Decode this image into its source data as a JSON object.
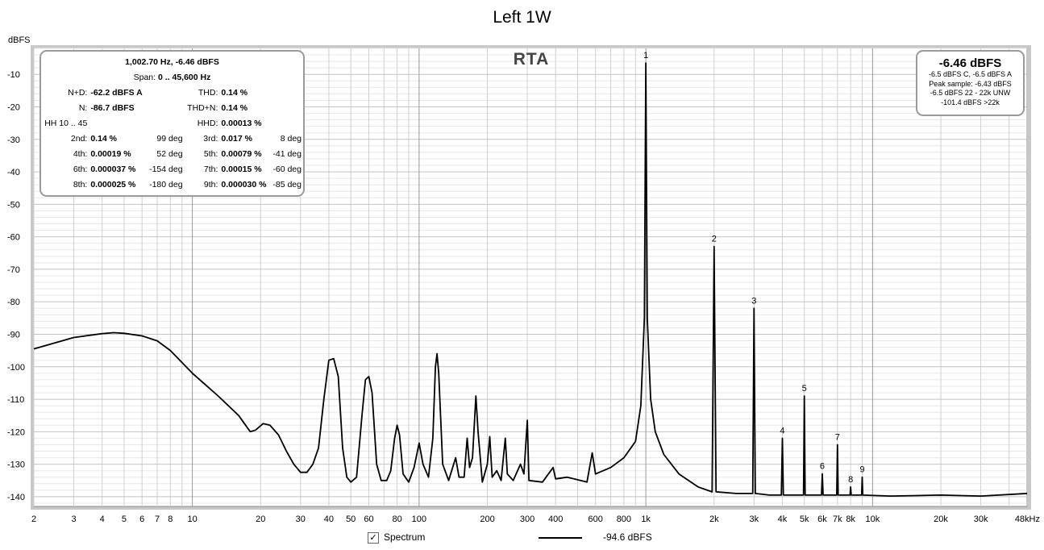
{
  "chart_data": {
    "type": "line",
    "title": "Left 1W",
    "ylabel": "dBFS",
    "xlabel": "",
    "x_scale": "log",
    "xlim": [
      2,
      48000
    ],
    "ylim": [
      -143,
      -2
    ],
    "grid": true,
    "x_ticks": [
      {
        "v": 2,
        "label": "2"
      },
      {
        "v": 3,
        "label": "3"
      },
      {
        "v": 4,
        "label": "4"
      },
      {
        "v": 5,
        "label": "5"
      },
      {
        "v": 6,
        "label": "6"
      },
      {
        "v": 7,
        "label": "7"
      },
      {
        "v": 8,
        "label": "8"
      },
      {
        "v": 10,
        "label": "10"
      },
      {
        "v": 20,
        "label": "20"
      },
      {
        "v": 30,
        "label": "30"
      },
      {
        "v": 40,
        "label": "40"
      },
      {
        "v": 50,
        "label": "50"
      },
      {
        "v": 60,
        "label": "60"
      },
      {
        "v": 80,
        "label": "80"
      },
      {
        "v": 100,
        "label": "100"
      },
      {
        "v": 200,
        "label": "200"
      },
      {
        "v": 300,
        "label": "300"
      },
      {
        "v": 400,
        "label": "400"
      },
      {
        "v": 600,
        "label": "600"
      },
      {
        "v": 800,
        "label": "800"
      },
      {
        "v": 1000,
        "label": "1k"
      },
      {
        "v": 2000,
        "label": "2k"
      },
      {
        "v": 3000,
        "label": "3k"
      },
      {
        "v": 4000,
        "label": "4k"
      },
      {
        "v": 5000,
        "label": "5k"
      },
      {
        "v": 6000,
        "label": "6k"
      },
      {
        "v": 7000,
        "label": "7k"
      },
      {
        "v": 8000,
        "label": "8k"
      },
      {
        "v": 10000,
        "label": "10k"
      },
      {
        "v": 20000,
        "label": "20k"
      },
      {
        "v": 30000,
        "label": "30k"
      },
      {
        "v": 48000,
        "label": "48kHz"
      }
    ],
    "y_ticks": [
      -10,
      -20,
      -30,
      -40,
      -50,
      -60,
      -70,
      -80,
      -90,
      -100,
      -110,
      -120,
      -130,
      -140
    ],
    "series": [
      {
        "name": "Spectrum",
        "color": "#000000",
        "points": [
          [
            2,
            -94.5
          ],
          [
            3,
            -91
          ],
          [
            4,
            -89.8
          ],
          [
            4.5,
            -89.5
          ],
          [
            5,
            -89.7
          ],
          [
            6,
            -90.5
          ],
          [
            7,
            -92
          ],
          [
            8,
            -95
          ],
          [
            10,
            -102
          ],
          [
            13,
            -109
          ],
          [
            16,
            -115
          ],
          [
            18,
            -120
          ],
          [
            19,
            -119.5
          ],
          [
            20.5,
            -117.5
          ],
          [
            22,
            -118
          ],
          [
            24,
            -121
          ],
          [
            26,
            -126
          ],
          [
            28,
            -130
          ],
          [
            30,
            -132.5
          ],
          [
            32,
            -132.5
          ],
          [
            34,
            -130
          ],
          [
            36,
            -125
          ],
          [
            38,
            -110
          ],
          [
            40,
            -98
          ],
          [
            42,
            -97.5
          ],
          [
            44,
            -103
          ],
          [
            46,
            -125
          ],
          [
            48,
            -134
          ],
          [
            50,
            -135.5
          ],
          [
            53,
            -134
          ],
          [
            56,
            -115
          ],
          [
            58,
            -104
          ],
          [
            60,
            -103
          ],
          [
            62,
            -108
          ],
          [
            65,
            -130
          ],
          [
            68,
            -135
          ],
          [
            72,
            -135
          ],
          [
            75,
            -132
          ],
          [
            78,
            -122
          ],
          [
            80,
            -118
          ],
          [
            82,
            -121
          ],
          [
            85,
            -133
          ],
          [
            90,
            -135.5
          ],
          [
            95,
            -131
          ],
          [
            100,
            -123.5
          ],
          [
            104,
            -130
          ],
          [
            110,
            -134
          ],
          [
            115,
            -122
          ],
          [
            118,
            -100
          ],
          [
            120,
            -96
          ],
          [
            122,
            -102
          ],
          [
            127,
            -130
          ],
          [
            135,
            -135
          ],
          [
            145,
            -128
          ],
          [
            150,
            -134
          ],
          [
            158,
            -134
          ],
          [
            163,
            -122
          ],
          [
            167,
            -131
          ],
          [
            172,
            -128
          ],
          [
            178,
            -109
          ],
          [
            182,
            -120
          ],
          [
            190,
            -135.5
          ],
          [
            200,
            -130
          ],
          [
            205,
            -121.5
          ],
          [
            210,
            -134
          ],
          [
            220,
            -132
          ],
          [
            230,
            -135
          ],
          [
            240,
            -122
          ],
          [
            245,
            -133
          ],
          [
            260,
            -135
          ],
          [
            280,
            -130
          ],
          [
            290,
            -133
          ],
          [
            300,
            -116.5
          ],
          [
            305,
            -135
          ],
          [
            350,
            -135.5
          ],
          [
            390,
            -131
          ],
          [
            400,
            -134.5
          ],
          [
            450,
            -134
          ],
          [
            550,
            -135.5
          ],
          [
            580,
            -126.5
          ],
          [
            600,
            -133
          ],
          [
            700,
            -131
          ],
          [
            800,
            -128
          ],
          [
            900,
            -123
          ],
          [
            950,
            -112
          ],
          [
            985,
            -85
          ],
          [
            1000,
            -6.5
          ],
          [
            1015,
            -85
          ],
          [
            1050,
            -110
          ],
          [
            1100,
            -120
          ],
          [
            1200,
            -127
          ],
          [
            1400,
            -133
          ],
          [
            1700,
            -137
          ],
          [
            1960,
            -138.5
          ],
          [
            2000,
            -63
          ],
          [
            2040,
            -138.5
          ],
          [
            2500,
            -139
          ],
          [
            2960,
            -139
          ],
          [
            3000,
            -82
          ],
          [
            3040,
            -139
          ],
          [
            3500,
            -139.5
          ],
          [
            3960,
            -139.5
          ],
          [
            4000,
            -122
          ],
          [
            4040,
            -139.5
          ],
          [
            4960,
            -139.5
          ],
          [
            5000,
            -109
          ],
          [
            5040,
            -139.5
          ],
          [
            5950,
            -139.5
          ],
          [
            6000,
            -133
          ],
          [
            6050,
            -139.5
          ],
          [
            6950,
            -139.5
          ],
          [
            7000,
            -124
          ],
          [
            7050,
            -139.5
          ],
          [
            7950,
            -139.5
          ],
          [
            8000,
            -137
          ],
          [
            8050,
            -139.5
          ],
          [
            8950,
            -139.5
          ],
          [
            9000,
            -134
          ],
          [
            9050,
            -139.5
          ],
          [
            12000,
            -139.8
          ],
          [
            20000,
            -139.5
          ],
          [
            30000,
            -139.8
          ],
          [
            48000,
            -139
          ]
        ]
      }
    ],
    "harmonic_markers": [
      {
        "label": "1",
        "x": 1000,
        "y": -6.5
      },
      {
        "label": "2",
        "x": 2000,
        "y": -63
      },
      {
        "label": "3",
        "x": 3000,
        "y": -82
      },
      {
        "label": "4",
        "x": 4000,
        "y": -122
      },
      {
        "label": "5",
        "x": 5000,
        "y": -109
      },
      {
        "label": "6",
        "x": 6000,
        "y": -133
      },
      {
        "label": "7",
        "x": 7000,
        "y": -124
      },
      {
        "label": "8",
        "x": 8000,
        "y": -137
      },
      {
        "label": "9",
        "x": 9000,
        "y": -134
      }
    ]
  },
  "panel": {
    "label": "RTA"
  },
  "harmonics_box": {
    "header": "1,002.70 Hz, -6.46 dBFS",
    "span_label": "Span: ",
    "span_value": "0 .. 45,600 Hz",
    "rows": [
      [
        "N+D:",
        "-62.2 dBFS A",
        "",
        "THD:",
        "0.14 %",
        ""
      ],
      [
        "N:",
        "-86.7 dBFS",
        "",
        "THD+N:",
        "0.14 %",
        ""
      ],
      [
        "HH 10 .. 45",
        "",
        "",
        "HHD:",
        "0.00013 %",
        ""
      ],
      [
        "2nd:",
        "0.14 %",
        "99 deg",
        "3rd:",
        "0.017 %",
        "8 deg"
      ],
      [
        "4th:",
        "0.00019 %",
        "52 deg",
        "5th:",
        "0.00079 %",
        "-41 deg"
      ],
      [
        "6th:",
        "0.000037 %",
        "-154 deg",
        "7th:",
        "0.00015 %",
        "-60 deg"
      ],
      [
        "8th:",
        "0.000025 %",
        "-180 deg",
        "9th:",
        "0.000030 %",
        "-85 deg"
      ]
    ]
  },
  "level_box": {
    "main": "-6.46 dBFS",
    "lines": [
      "-6.5 dBFS C, -6.5 dBFS A",
      "Peak sample: -6.43 dBFS",
      "-6.5 dBFS 22 - 22k UNW",
      "-101.4 dBFS >22k"
    ]
  },
  "legend": {
    "checkbox": "✓",
    "label": "Spectrum",
    "value": "-94.6 dBFS"
  }
}
